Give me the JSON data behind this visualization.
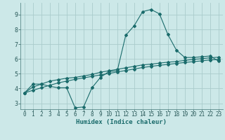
{
  "xlabel": "Humidex (Indice chaleur)",
  "bg_color": "#cce8e8",
  "grid_color": "#aacccc",
  "line_color": "#1a6b6b",
  "xlim": [
    -0.5,
    23.5
  ],
  "ylim": [
    2.6,
    9.8
  ],
  "yticks": [
    3,
    4,
    5,
    6,
    7,
    8,
    9
  ],
  "xticks": [
    0,
    1,
    2,
    3,
    4,
    5,
    6,
    7,
    8,
    9,
    10,
    11,
    12,
    13,
    14,
    15,
    16,
    17,
    18,
    19,
    20,
    21,
    22,
    23
  ],
  "series1_x": [
    0,
    1,
    2,
    3,
    4,
    5,
    6,
    7,
    8,
    9,
    10,
    11,
    12,
    13,
    14,
    15,
    16,
    17,
    18,
    19,
    20,
    21,
    22,
    23
  ],
  "series1_y": [
    3.7,
    4.3,
    4.3,
    4.15,
    4.05,
    4.05,
    2.7,
    2.75,
    4.05,
    4.75,
    5.15,
    5.2,
    7.6,
    8.25,
    9.2,
    9.35,
    9.05,
    7.65,
    6.6,
    6.1,
    6.1,
    6.15,
    6.2,
    5.85
  ],
  "series2_x": [
    0,
    1,
    2,
    3,
    4,
    5,
    6,
    7,
    8,
    9,
    10,
    11,
    12,
    13,
    14,
    15,
    16,
    17,
    18,
    19,
    20,
    21,
    22,
    23
  ],
  "series2_y": [
    3.7,
    4.1,
    4.3,
    4.5,
    4.6,
    4.7,
    4.75,
    4.85,
    4.95,
    5.1,
    5.2,
    5.3,
    5.4,
    5.5,
    5.6,
    5.65,
    5.72,
    5.78,
    5.83,
    5.9,
    5.97,
    6.02,
    6.08,
    6.12
  ],
  "series3_x": [
    0,
    1,
    2,
    3,
    4,
    5,
    6,
    7,
    8,
    9,
    10,
    11,
    12,
    13,
    14,
    15,
    16,
    17,
    18,
    19,
    20,
    21,
    22,
    23
  ],
  "series3_y": [
    3.7,
    3.88,
    4.05,
    4.22,
    4.38,
    4.5,
    4.62,
    4.72,
    4.82,
    4.92,
    5.02,
    5.12,
    5.22,
    5.32,
    5.42,
    5.5,
    5.57,
    5.63,
    5.7,
    5.76,
    5.82,
    5.87,
    5.93,
    5.97
  ],
  "markersize": 2.0,
  "linewidth": 0.8
}
